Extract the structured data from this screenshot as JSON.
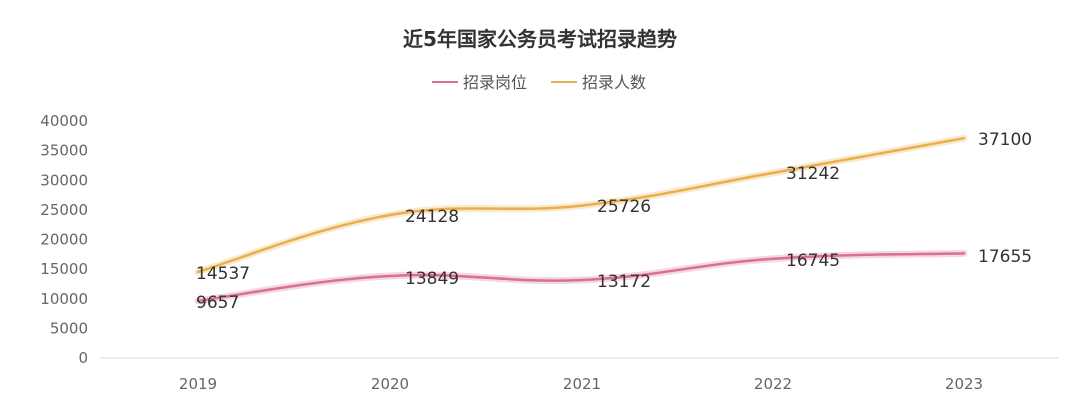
{
  "chart_data": {
    "type": "line",
    "title": "近5年国家公务员考试招录趋势",
    "xlabel": "",
    "ylabel": "",
    "categories": [
      "2019",
      "2020",
      "2021",
      "2022",
      "2023"
    ],
    "ylim": [
      0,
      40000
    ],
    "yticks": [
      "40000",
      "35000",
      "30000",
      "25000",
      "20000",
      "15000",
      "10000",
      "5000",
      "0"
    ],
    "grid": false,
    "legend_position": "top-center",
    "series": [
      {
        "name": "招录岗位",
        "color": "#d9708f",
        "values": [
          9657,
          13849,
          13172,
          16745,
          17655
        ]
      },
      {
        "name": "招录人数",
        "color": "#e8b04c",
        "values": [
          14537,
          24128,
          25726,
          31242,
          37100
        ]
      }
    ]
  }
}
